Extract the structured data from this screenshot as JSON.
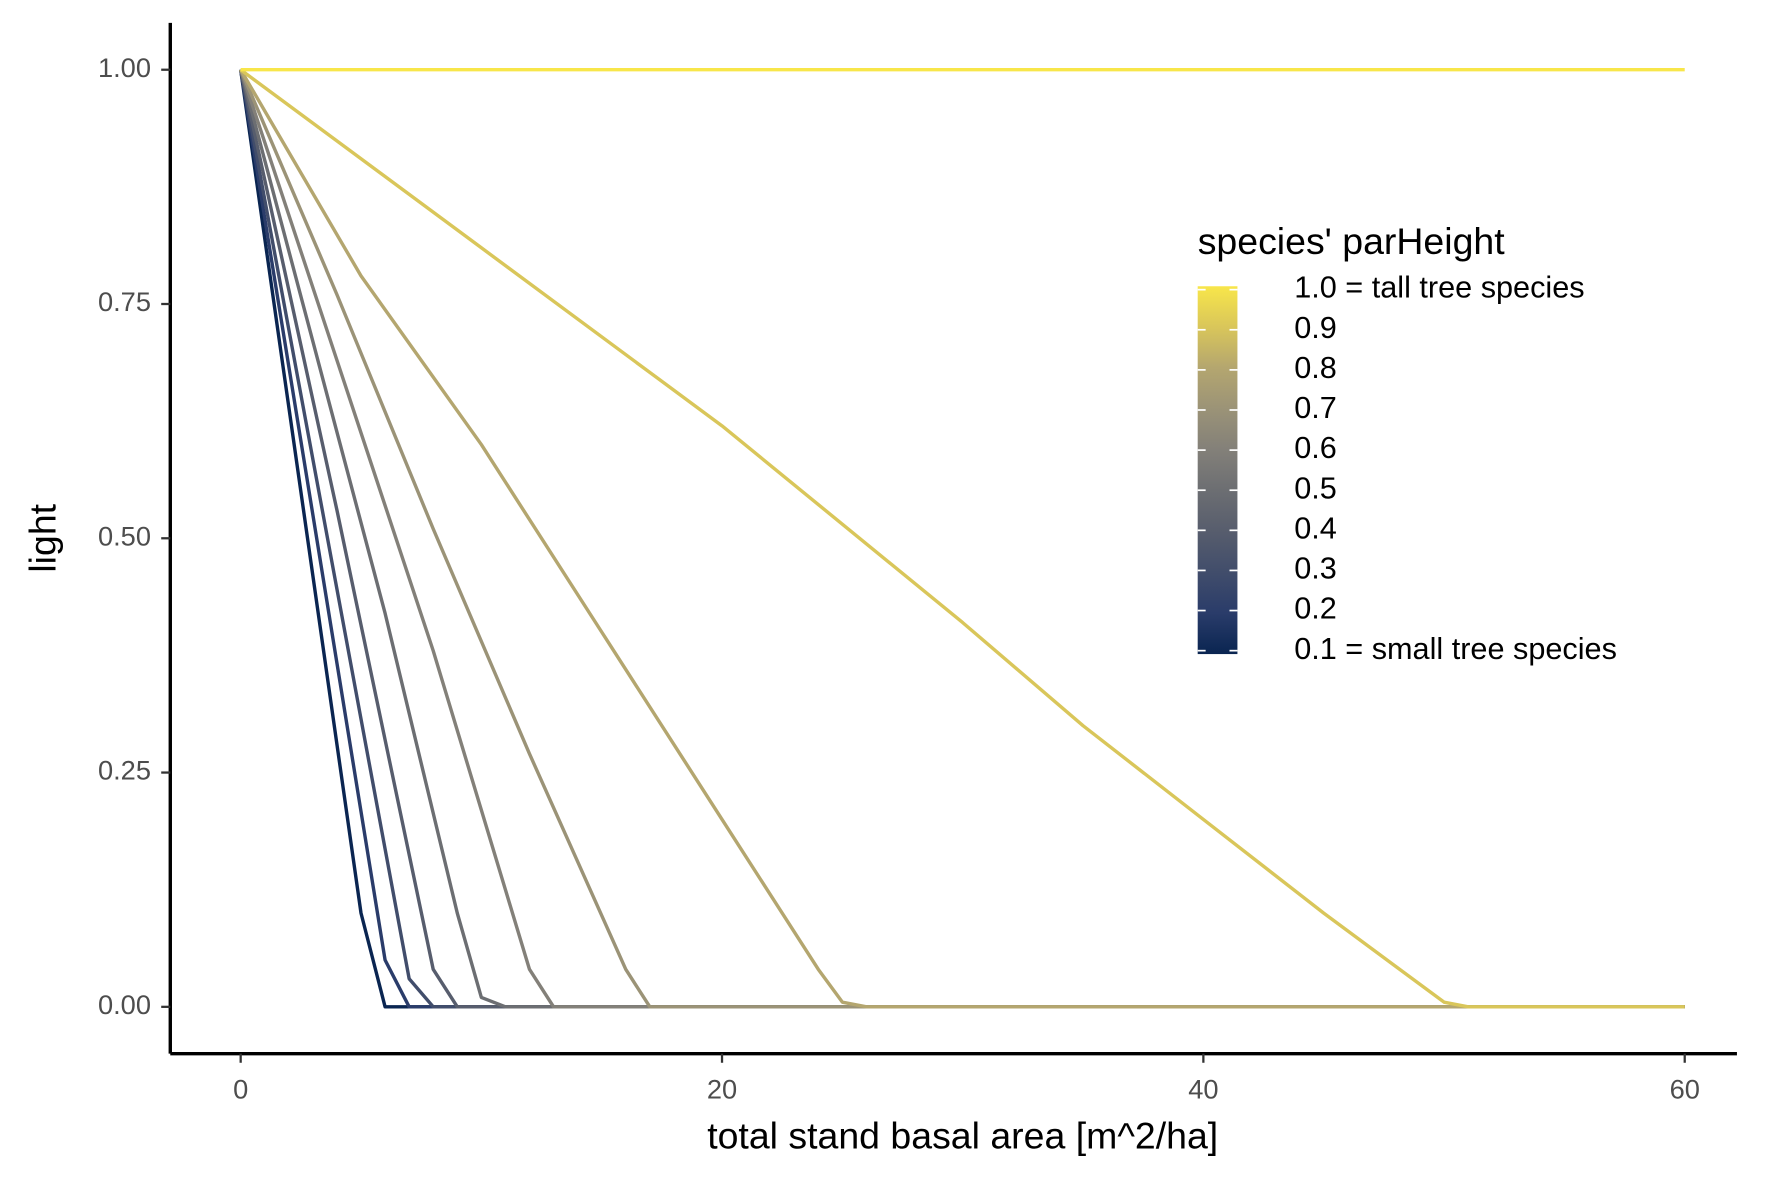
{
  "chart_data": {
    "type": "line",
    "x_label": "total stand basal area [m^2/ha]",
    "y_label": "light",
    "xlim": [
      -3,
      63
    ],
    "ylim": [
      -0.05,
      1.05
    ],
    "xticks": [
      0,
      20,
      40,
      60
    ],
    "yticks": [
      {
        "value": 0,
        "label": "0.00"
      },
      {
        "value": 0.25,
        "label": "0.25"
      },
      {
        "value": 0.5,
        "label": "0.50"
      },
      {
        "value": 0.75,
        "label": "0.75"
      },
      {
        "value": 1,
        "label": "1.00"
      }
    ],
    "grid": false,
    "legend": {
      "title": "species' parHeight",
      "position": "right",
      "ticks": [
        {
          "value": 1.0,
          "label": "1.0 = tall tree species"
        },
        0.9,
        0.8,
        0.7,
        0.6,
        0.5,
        0.4,
        0.3,
        0.2,
        {
          "value": 0.1,
          "label": "0.1 = small tree species"
        }
      ]
    },
    "series": [
      {
        "parHeight": 0.1,
        "color": "#0a2551",
        "x": [
          0,
          5,
          6,
          60
        ],
        "values": [
          1,
          0.1,
          0,
          0
        ]
      },
      {
        "parHeight": 0.2,
        "color": "#2a3c6a",
        "x": [
          0,
          6,
          7,
          60
        ],
        "values": [
          1,
          0.05,
          0,
          0
        ]
      },
      {
        "parHeight": 0.3,
        "color": "#414d6b",
        "x": [
          0,
          7,
          8,
          60
        ],
        "values": [
          1,
          0.03,
          0,
          0
        ]
      },
      {
        "parHeight": 0.4,
        "color": "#575d6d",
        "x": [
          0,
          4,
          8,
          9,
          60
        ],
        "values": [
          1,
          0.53,
          0.04,
          0,
          0
        ]
      },
      {
        "parHeight": 0.5,
        "color": "#6c6e72",
        "x": [
          0,
          3,
          6,
          9,
          10,
          11,
          60
        ],
        "values": [
          1,
          0.71,
          0.42,
          0.1,
          0.01,
          0,
          0
        ]
      },
      {
        "parHeight": 0.6,
        "color": "#838079",
        "x": [
          0,
          4,
          8,
          12,
          13,
          60
        ],
        "values": [
          1,
          0.69,
          0.38,
          0.04,
          0,
          0
        ]
      },
      {
        "parHeight": 0.7,
        "color": "#9b9377",
        "x": [
          0,
          4,
          8,
          12,
          16,
          17,
          60
        ],
        "values": [
          1,
          0.76,
          0.51,
          0.27,
          0.04,
          0,
          0
        ]
      },
      {
        "parHeight": 0.8,
        "color": "#b4a66f",
        "x": [
          0,
          5,
          10,
          15,
          20,
          24,
          25,
          26,
          60
        ],
        "values": [
          1,
          0.78,
          0.6,
          0.4,
          0.2,
          0.04,
          0.005,
          0,
          0
        ]
      },
      {
        "parHeight": 0.9,
        "color": "#d9c65a",
        "x": [
          0,
          10,
          20,
          30,
          35,
          40,
          45,
          50,
          51,
          60
        ],
        "values": [
          1,
          0.81,
          0.62,
          0.41,
          0.3,
          0.2,
          0.1,
          0.005,
          0,
          0
        ]
      },
      {
        "parHeight": 1.0,
        "color": "#f8e64a",
        "x": [
          0,
          60
        ],
        "values": [
          1,
          1
        ]
      }
    ]
  }
}
